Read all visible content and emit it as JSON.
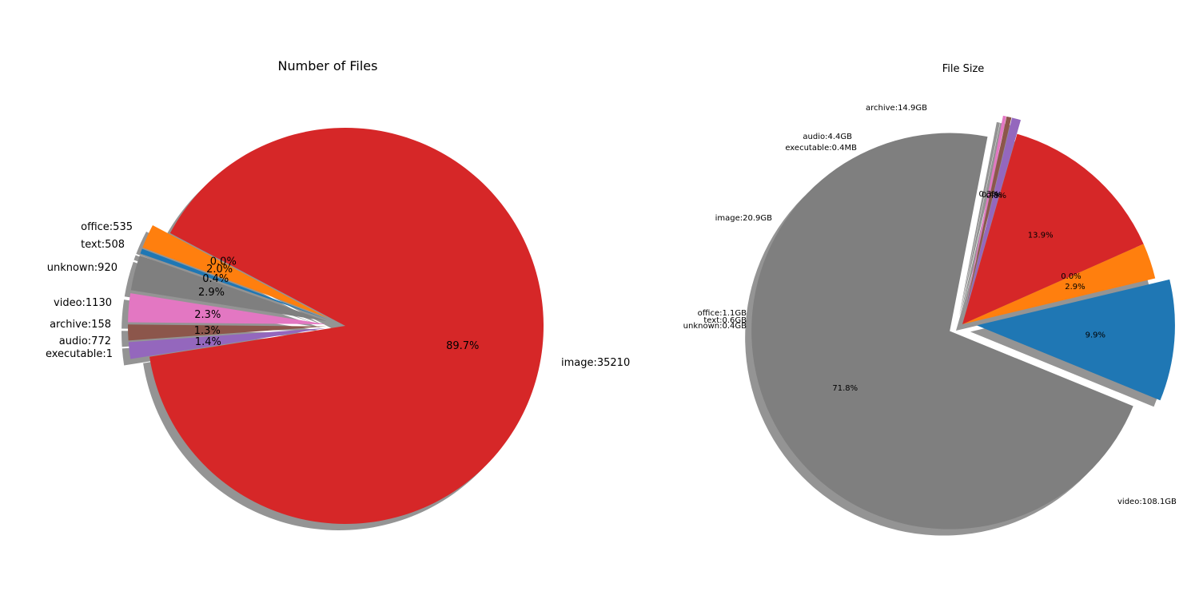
{
  "chart_data": [
    {
      "type": "pie",
      "title": "Number of Files",
      "labels": [
        "image:35210",
        "executable:1",
        "audio:772",
        "archive:158",
        "video:1130",
        "unknown:920",
        "text:508",
        "office:535"
      ],
      "categories": [
        "image",
        "executable",
        "audio",
        "archive",
        "video",
        "unknown",
        "text",
        "office"
      ],
      "values": [
        35210,
        1,
        772,
        158,
        1130,
        920,
        508,
        535
      ],
      "percent_labels": [
        "89.7%",
        "0.0%",
        "2.0%",
        "0.4%",
        "2.9%",
        "2.3%",
        "1.3%",
        "1.4%"
      ],
      "colors": [
        "#d62728",
        "#8c564b",
        "#ff7f0e",
        "#1f77b4",
        "#7f7f7f",
        "#e377c2",
        "#8c564b",
        "#9467bd"
      ],
      "exploded": [
        "executable",
        "audio",
        "archive",
        "video",
        "unknown",
        "text",
        "office"
      ],
      "shadow": true
    },
    {
      "type": "pie",
      "title": "File Size",
      "labels": [
        "video:108.1GB",
        "archive:14.9GB",
        "audio:4.4GB",
        "executable:0.4MB",
        "image:20.9GB",
        "office:1.1GB",
        "text:0.6GB",
        "unknown:0.4GB"
      ],
      "categories": [
        "video",
        "archive",
        "audio",
        "executable",
        "image",
        "office",
        "text",
        "unknown"
      ],
      "values": [
        108.1,
        14.9,
        4.4,
        0.0004,
        20.9,
        1.1,
        0.6,
        0.4
      ],
      "unit": "GB",
      "percent_labels": [
        "71.8%",
        "9.9%",
        "2.9%",
        "0.0%",
        "13.9%",
        "0.8%",
        "0.4%",
        "0.3%"
      ],
      "colors": [
        "#7f7f7f",
        "#1f77b4",
        "#ff7f0e",
        "#8c564b",
        "#d62728",
        "#9467bd",
        "#8c564b",
        "#e377c2"
      ],
      "exploded": [
        "video",
        "archive",
        "office",
        "text",
        "unknown"
      ],
      "shadow": true
    }
  ]
}
